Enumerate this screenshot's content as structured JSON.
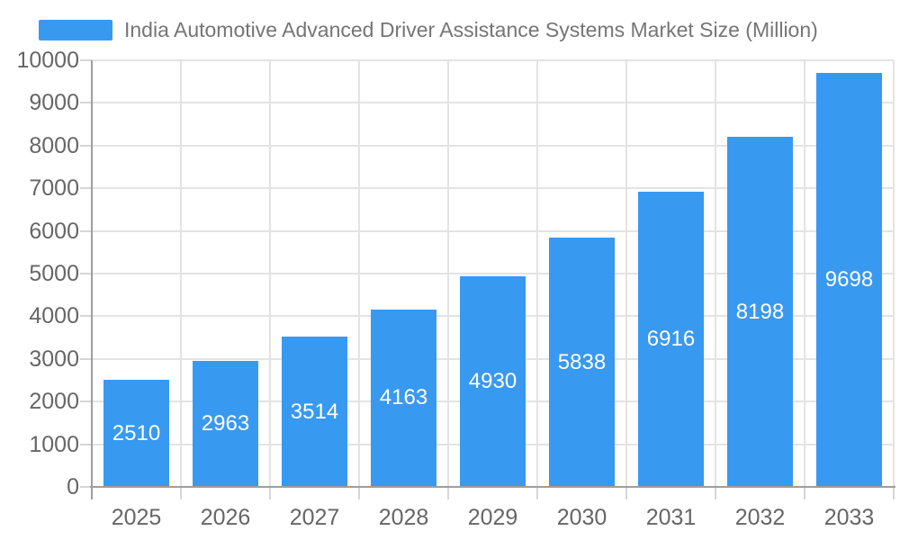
{
  "chart": {
    "legend_label": "India Automotive Advanced Driver Assistance Systems Market Size (Million)",
    "colors": {
      "bar": "#3899f0",
      "grid": "#e3e3e3",
      "tick": "#d6d6d6",
      "axis_line": "#9e9e9e",
      "axis_text": "#666666",
      "legend_text": "#757575",
      "bar_label_text": "#ffffff",
      "background": "#ffffff"
    }
  },
  "chart_data": {
    "type": "bar",
    "title": "India Automotive Advanced Driver Assistance Systems Market Size (Million)",
    "categories": [
      "2025",
      "2026",
      "2027",
      "2028",
      "2029",
      "2030",
      "2031",
      "2032",
      "2033"
    ],
    "values": [
      2510,
      2963,
      3514,
      4163,
      4930,
      5838,
      6916,
      8198,
      9698
    ],
    "series_name": "India Automotive Advanced Driver Assistance Systems Market Size (Million)",
    "xlabel": "",
    "ylabel": "",
    "ylim": [
      0,
      10000
    ],
    "yticks": [
      0,
      1000,
      2000,
      3000,
      4000,
      5000,
      6000,
      7000,
      8000,
      9000,
      10000
    ],
    "grid": true,
    "legend_position": "top-left",
    "value_labels": "inside-center"
  }
}
